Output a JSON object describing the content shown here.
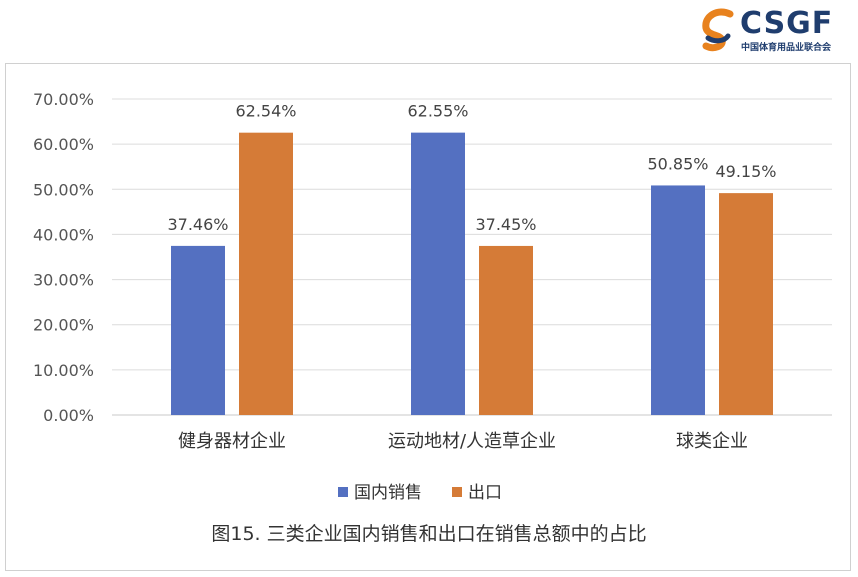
{
  "logo": {
    "text": "CSGF",
    "subtitle": "中国体育用品业联合会"
  },
  "chart_data": {
    "type": "bar",
    "categories": [
      "健身器材企业",
      "运动地材/人造草企业",
      "球类企业"
    ],
    "series": [
      {
        "name": "国内销售",
        "values": [
          37.46,
          62.55,
          50.85
        ],
        "labels": [
          "37.46%",
          "62.55%",
          "50.85%"
        ],
        "color": "#5470c1"
      },
      {
        "name": "出口",
        "values": [
          62.54,
          37.45,
          49.15
        ],
        "labels": [
          "62.54%",
          "37.45%",
          "49.15%"
        ],
        "color": "#d57b37"
      }
    ],
    "yticks": [
      "0.00%",
      "10.00%",
      "20.00%",
      "30.00%",
      "40.00%",
      "50.00%",
      "60.00%",
      "70.00%"
    ],
    "ylim": [
      0,
      70
    ],
    "grid": true,
    "legend_position": "bottom",
    "title": "图15. 三类企业国内销售和出口在销售总额中的占比"
  }
}
